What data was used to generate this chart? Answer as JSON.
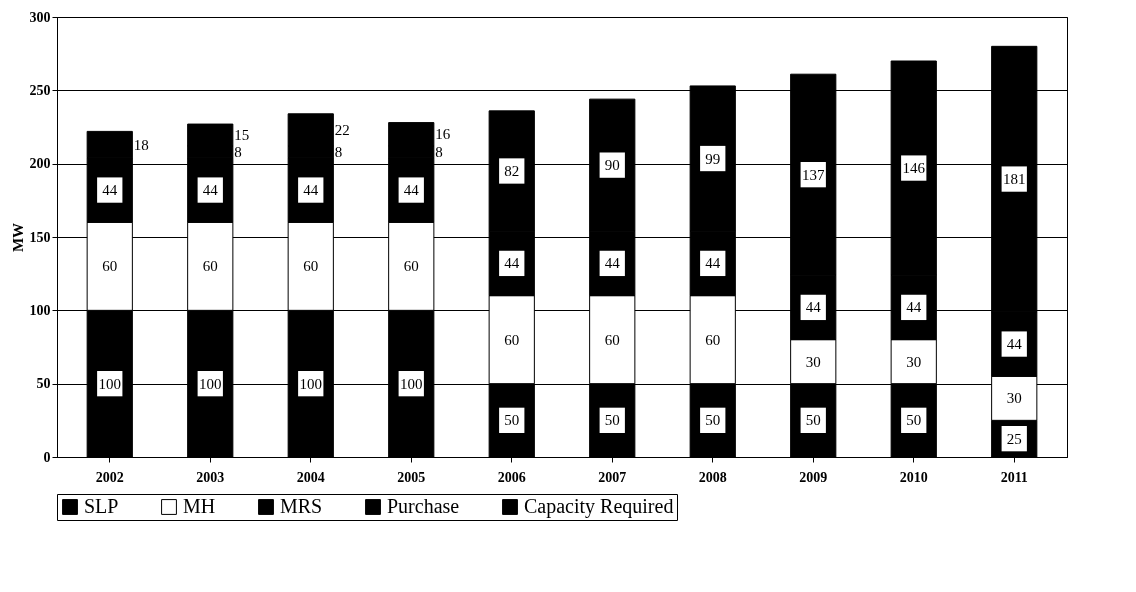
{
  "chart_data": {
    "type": "bar",
    "stacked": true,
    "ylabel": "MW",
    "categories": [
      "2002",
      "2003",
      "2004",
      "2005",
      "2006",
      "2007",
      "2008",
      "2009",
      "2010",
      "2011"
    ],
    "series": [
      {
        "name": "SLP",
        "color": "#000000",
        "values": [
          100,
          100,
          100,
          100,
          50,
          50,
          50,
          50,
          50,
          25
        ]
      },
      {
        "name": "MH",
        "color": "#ffffff",
        "values": [
          60,
          60,
          60,
          60,
          60,
          60,
          60,
          30,
          30,
          30
        ]
      },
      {
        "name": "MRS",
        "color": "#000000",
        "values": [
          44,
          44,
          44,
          44,
          44,
          44,
          44,
          44,
          44,
          44
        ]
      },
      {
        "name": "Purchase",
        "color": "#000000",
        "values": [
          18,
          8,
          8,
          8,
          82,
          90,
          99,
          137,
          146,
          181
        ]
      },
      {
        "name": "Capacity Required",
        "color": "#000000",
        "values": [
          null,
          15,
          22,
          16,
          null,
          null,
          null,
          null,
          null,
          null
        ]
      }
    ],
    "ylim": [
      0,
      300
    ],
    "yticks": [
      0,
      50,
      100,
      150,
      200,
      250,
      300
    ],
    "grid": "y",
    "legend": "bottom",
    "data_labels": true
  }
}
